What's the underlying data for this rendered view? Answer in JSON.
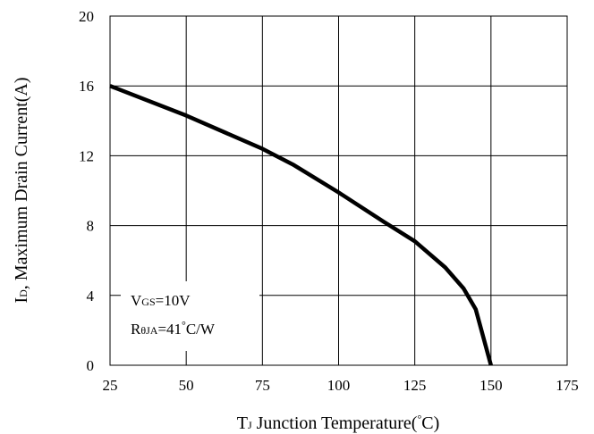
{
  "chart_data": {
    "type": "line",
    "xlabel": {
      "main": "T",
      "sub": "J",
      "rest": " Junction Temperature(",
      "deg": "°",
      "unit": "C)"
    },
    "ylabel": {
      "main": "I",
      "sub": "D",
      "rest": ", Maximum Drain Current(A)"
    },
    "xlim": [
      25,
      175
    ],
    "ylim": [
      0,
      20
    ],
    "xticks": [
      25,
      50,
      75,
      100,
      125,
      150,
      175
    ],
    "yticks": [
      0,
      4,
      8,
      12,
      16,
      20
    ],
    "grid": true,
    "series": [
      {
        "x": [
          25,
          50,
          75,
          85,
          100,
          115,
          125,
          135,
          141,
          145,
          150
        ],
        "y": [
          16,
          14.3,
          12.4,
          11.5,
          9.9,
          8.2,
          7.1,
          5.6,
          4.4,
          3.2,
          0
        ]
      }
    ],
    "annotation": {
      "line1": {
        "main": "V",
        "sub": "GS",
        "rest": "=10V"
      },
      "line2": {
        "main": "R",
        "sub": "θJA",
        "rest": "=41",
        "deg": "°",
        "unit": "C/W"
      }
    }
  }
}
